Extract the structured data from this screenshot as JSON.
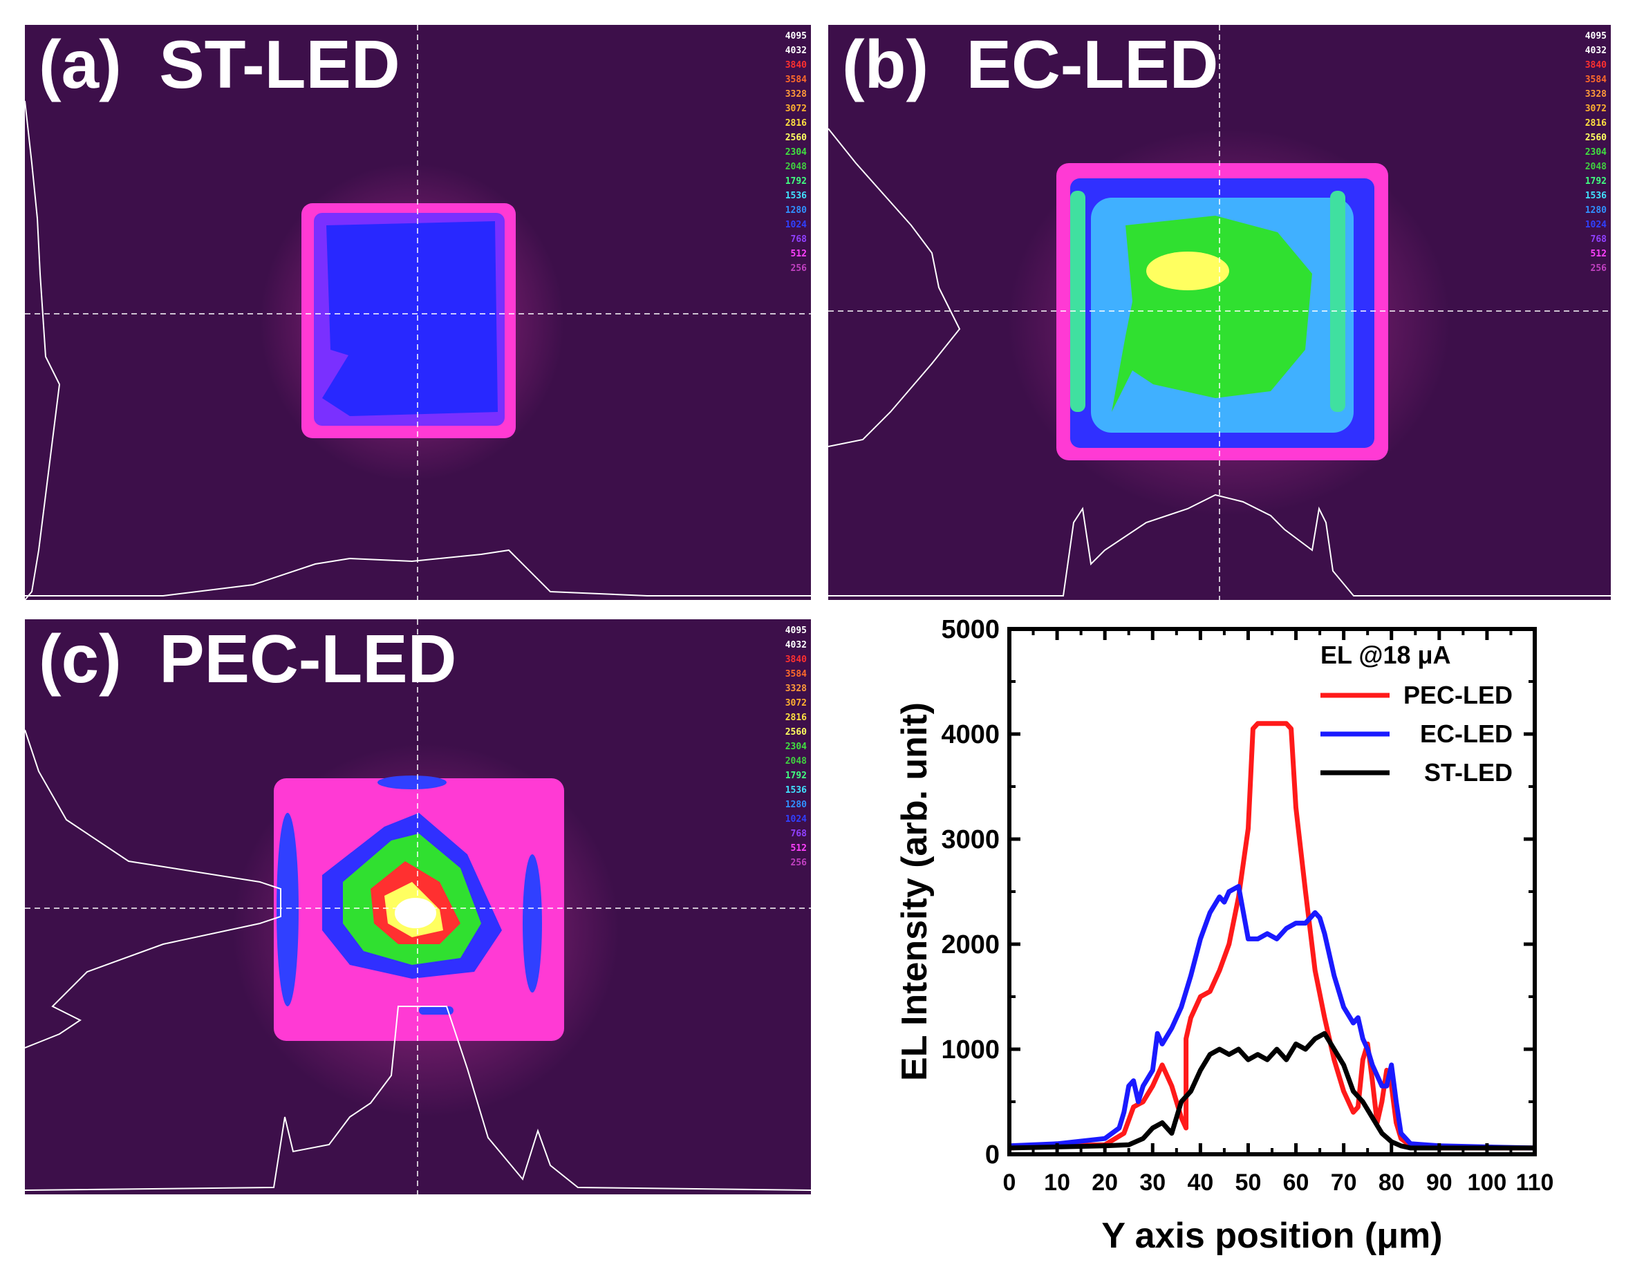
{
  "panels": [
    {
      "id": "a",
      "title": "(a)  ST-LED"
    },
    {
      "id": "b",
      "title": "(b)  EC-LED"
    },
    {
      "id": "c",
      "title": "(c)  PEC-LED"
    }
  ],
  "color_scale": [
    {
      "v": "4095",
      "c": "#ffffff"
    },
    {
      "v": "4032",
      "c": "#ffffff"
    },
    {
      "v": "3840",
      "c": "#ff3030"
    },
    {
      "v": "3584",
      "c": "#ff6a2a"
    },
    {
      "v": "3328",
      "c": "#ff9a3a"
    },
    {
      "v": "3072",
      "c": "#ffb030"
    },
    {
      "v": "2816",
      "c": "#ffe040"
    },
    {
      "v": "2560",
      "c": "#ffff60"
    },
    {
      "v": "2304",
      "c": "#40e040"
    },
    {
      "v": "2048",
      "c": "#40d040"
    },
    {
      "v": "1792",
      "c": "#40ff80"
    },
    {
      "v": "1536",
      "c": "#40e0ff"
    },
    {
      "v": "1280",
      "c": "#3090ff"
    },
    {
      "v": "1024",
      "c": "#3040ff"
    },
    {
      "v": "768",
      "c": "#9040ff"
    },
    {
      "v": "512",
      "c": "#ff40ff"
    },
    {
      "v": "256",
      "c": "#c040c0"
    }
  ],
  "chart_data": {
    "type": "line",
    "title": "EL @18 μA",
    "xlabel": "Y axis position (μm)",
    "ylabel": "EL Intensity (arb. unit)",
    "xlim": [
      0,
      110
    ],
    "ylim": [
      0,
      5000
    ],
    "xticks": [
      "0",
      "10",
      "20",
      "30",
      "40",
      "50",
      "60",
      "70",
      "80",
      "90",
      "100",
      "110"
    ],
    "yticks": [
      "0",
      "1000",
      "2000",
      "3000",
      "4000",
      "5000"
    ],
    "series": [
      {
        "name": "PEC-LED",
        "color": "#ff1a1a",
        "x": [
          0,
          10,
          20,
          24,
          26,
          28,
          30,
          32,
          34,
          35,
          36,
          37,
          37,
          38,
          40,
          42,
          44,
          46,
          48,
          50,
          51,
          52,
          54,
          56,
          58,
          59,
          60,
          62,
          64,
          66,
          68,
          70,
          72,
          73,
          74,
          75,
          76,
          77,
          78,
          79,
          80,
          81,
          82,
          84,
          90,
          100,
          110
        ],
        "y": [
          60,
          80,
          90,
          200,
          450,
          500,
          650,
          850,
          650,
          500,
          350,
          250,
          1100,
          1300,
          1500,
          1550,
          1750,
          2000,
          2450,
          3100,
          4050,
          4100,
          4100,
          4100,
          4100,
          4050,
          3300,
          2500,
          1750,
          1300,
          900,
          600,
          400,
          450,
          900,
          1050,
          700,
          300,
          500,
          800,
          650,
          300,
          150,
          80,
          60,
          60,
          60
        ]
      },
      {
        "name": "EC-LED",
        "color": "#1a1aff",
        "x": [
          0,
          10,
          20,
          23,
          24,
          25,
          26,
          27,
          28,
          30,
          31,
          32,
          34,
          36,
          38,
          40,
          42,
          44,
          45,
          46,
          48,
          50,
          52,
          54,
          56,
          58,
          60,
          62,
          64,
          65,
          66,
          67,
          68,
          70,
          72,
          73,
          74,
          75,
          76,
          78,
          79,
          80,
          81,
          82,
          84,
          90,
          100,
          110
        ],
        "y": [
          80,
          100,
          150,
          250,
          400,
          650,
          700,
          500,
          650,
          800,
          1150,
          1050,
          1200,
          1400,
          1700,
          2050,
          2300,
          2450,
          2400,
          2500,
          2550,
          2050,
          2050,
          2100,
          2050,
          2150,
          2200,
          2200,
          2300,
          2250,
          2100,
          1900,
          1700,
          1400,
          1250,
          1300,
          1100,
          1000,
          850,
          650,
          650,
          850,
          500,
          200,
          100,
          80,
          70,
          60
        ]
      },
      {
        "name": "ST-LED",
        "color": "#000000",
        "x": [
          0,
          10,
          20,
          25,
          28,
          30,
          32,
          34,
          36,
          38,
          40,
          42,
          44,
          46,
          48,
          50,
          52,
          54,
          56,
          58,
          60,
          62,
          64,
          66,
          68,
          70,
          72,
          74,
          76,
          78,
          80,
          82,
          84,
          90,
          100,
          110
        ],
        "y": [
          60,
          70,
          80,
          90,
          150,
          250,
          300,
          200,
          500,
          600,
          800,
          950,
          1000,
          950,
          1000,
          900,
          950,
          900,
          1000,
          900,
          1050,
          1000,
          1100,
          1150,
          1000,
          850,
          600,
          500,
          350,
          200,
          120,
          80,
          60,
          60,
          60,
          60
        ]
      }
    ]
  }
}
